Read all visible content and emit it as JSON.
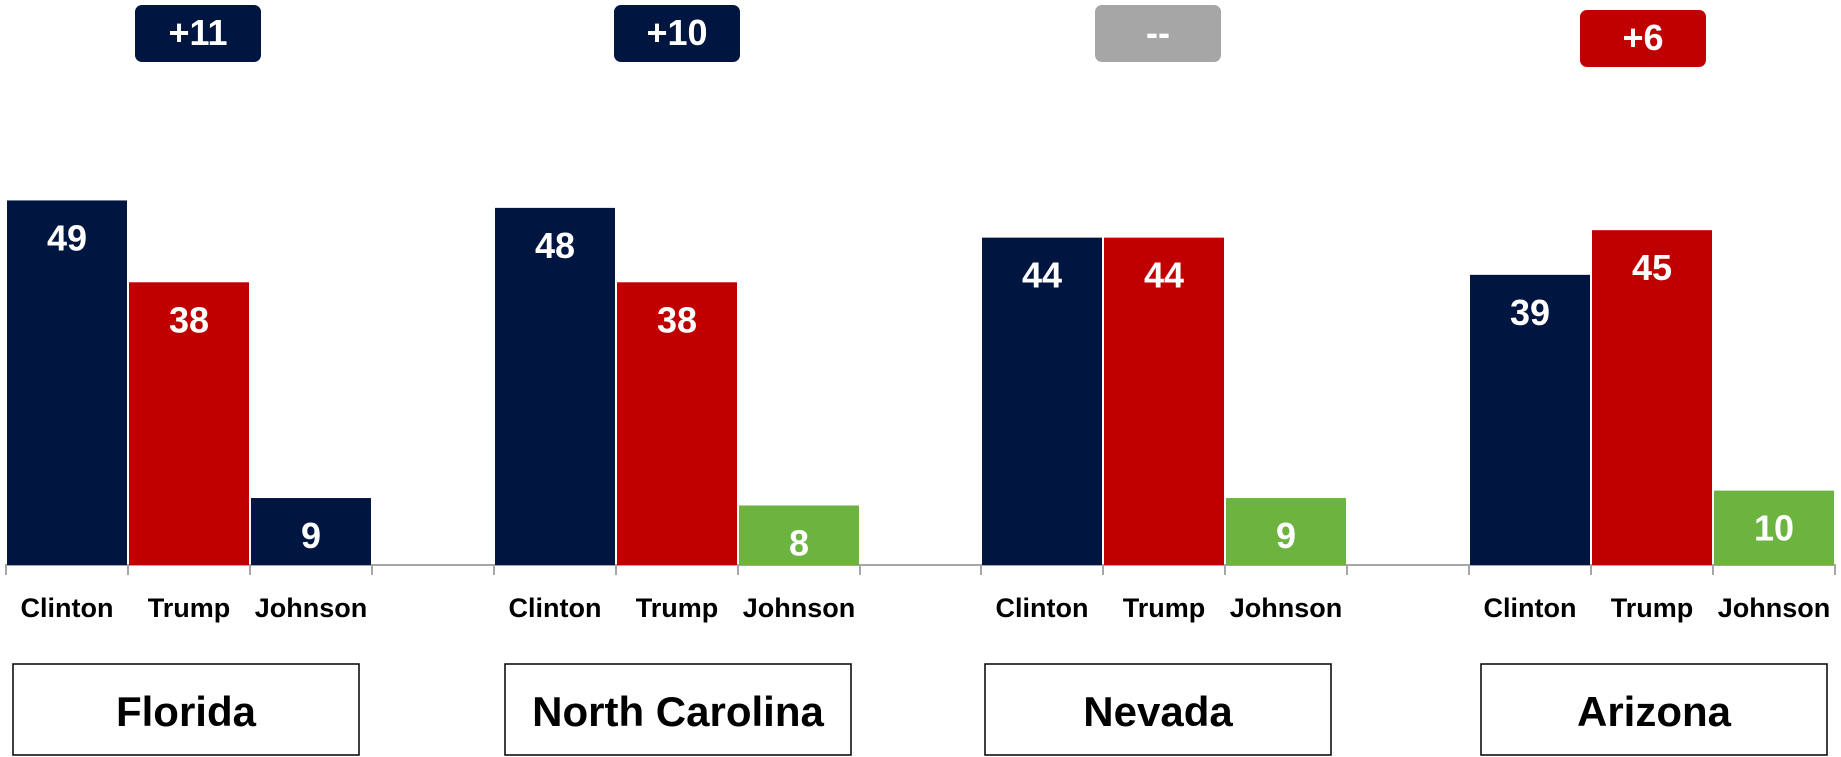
{
  "colors": {
    "navy": "#001641",
    "red": "#c00000",
    "green": "#6db33f",
    "gray": "#a6a6a6",
    "axis": "#a6a6a6"
  },
  "chart_data": {
    "type": "bar",
    "categories": [
      "Clinton",
      "Trump",
      "Johnson"
    ],
    "ylim": [
      0,
      49
    ],
    "grid": false,
    "groups": [
      {
        "state": "Florida",
        "margin": "+11",
        "margin_color": "navy",
        "values": [
          49,
          38,
          9
        ],
        "colors": [
          "navy",
          "red",
          "navy"
        ]
      },
      {
        "state": "North Carolina",
        "margin": "+10",
        "margin_color": "navy",
        "values": [
          48,
          38,
          8
        ],
        "colors": [
          "navy",
          "red",
          "green"
        ]
      },
      {
        "state": "Nevada",
        "margin": "--",
        "margin_color": "gray",
        "values": [
          44,
          44,
          9
        ],
        "colors": [
          "navy",
          "red",
          "green"
        ]
      },
      {
        "state": "Arizona",
        "margin": "+6",
        "margin_color": "red",
        "values": [
          39,
          45,
          10
        ],
        "colors": [
          "navy",
          "red",
          "green"
        ]
      }
    ]
  }
}
